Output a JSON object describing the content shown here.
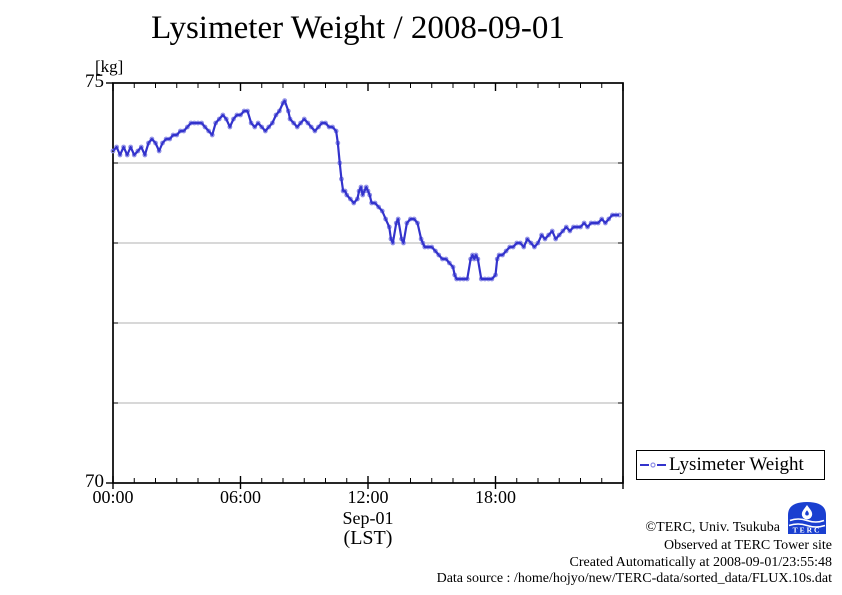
{
  "title": "Lysimeter Weight / 2008-09-01",
  "y_axis": {
    "unit_label": "[kg]",
    "top_tick": "75",
    "bottom_tick": "70"
  },
  "x_axis": {
    "tick_labels": [
      "00:00",
      "06:00",
      "12:00",
      "18:00"
    ],
    "tick_hours": [
      0,
      6,
      12,
      18
    ],
    "date_label": "Sep-01",
    "tz_label": "(LST)"
  },
  "legend": {
    "label": "Lysimeter Weight"
  },
  "footer": {
    "copyright": "©TERC, Univ. Tsukuba",
    "observed": "Observed at TERC Tower site",
    "created": "Created Automatically at 2008-09-01/23:55:48",
    "source": "Data source : /home/hojyo/new/TERC-data/sorted_data/FLUX.10s.dat",
    "logo_text": "TERC"
  },
  "colors": {
    "line": "#3333cc",
    "marker": "#8e8ee6",
    "grid": "#b0b0b0",
    "axis": "#000000",
    "logo_blue": "#1a3fd0"
  },
  "chart_data": {
    "type": "line",
    "series_name": "Lysimeter Weight",
    "title": "Lysimeter Weight / 2008-09-01",
    "xlabel": "Sep-01 (LST)",
    "ylabel": "[kg]",
    "xlim": [
      0,
      24
    ],
    "ylim": [
      70,
      75
    ],
    "y_labeled_ticks": [
      75,
      70
    ],
    "y_gridlines": [
      74,
      73,
      72,
      71
    ],
    "x_major_tick_hours": [
      0,
      6,
      12,
      18,
      24
    ],
    "x_minor_tick_interval_hours": 1,
    "grid": "horizontal-only",
    "legend_position": "bottom-right-outside",
    "points": [
      [
        0.0,
        74.15
      ],
      [
        0.17,
        74.2
      ],
      [
        0.33,
        74.1
      ],
      [
        0.5,
        74.2
      ],
      [
        0.67,
        74.1
      ],
      [
        0.83,
        74.2
      ],
      [
        1.0,
        74.1
      ],
      [
        1.17,
        74.15
      ],
      [
        1.33,
        74.2
      ],
      [
        1.5,
        74.1
      ],
      [
        1.67,
        74.25
      ],
      [
        1.83,
        74.3
      ],
      [
        2.0,
        74.25
      ],
      [
        2.17,
        74.15
      ],
      [
        2.33,
        74.25
      ],
      [
        2.5,
        74.3
      ],
      [
        2.67,
        74.3
      ],
      [
        2.83,
        74.35
      ],
      [
        3.0,
        74.35
      ],
      [
        3.17,
        74.4
      ],
      [
        3.33,
        74.4
      ],
      [
        3.5,
        74.45
      ],
      [
        3.67,
        74.5
      ],
      [
        3.83,
        74.5
      ],
      [
        4.0,
        74.5
      ],
      [
        4.17,
        74.5
      ],
      [
        4.33,
        74.45
      ],
      [
        4.5,
        74.4
      ],
      [
        4.67,
        74.35
      ],
      [
        4.83,
        74.5
      ],
      [
        5.0,
        74.55
      ],
      [
        5.17,
        74.6
      ],
      [
        5.33,
        74.55
      ],
      [
        5.5,
        74.45
      ],
      [
        5.67,
        74.55
      ],
      [
        5.83,
        74.6
      ],
      [
        6.0,
        74.6
      ],
      [
        6.17,
        74.65
      ],
      [
        6.33,
        74.65
      ],
      [
        6.5,
        74.5
      ],
      [
        6.67,
        74.45
      ],
      [
        6.83,
        74.5
      ],
      [
        7.0,
        74.45
      ],
      [
        7.17,
        74.4
      ],
      [
        7.33,
        74.45
      ],
      [
        7.5,
        74.5
      ],
      [
        7.67,
        74.6
      ],
      [
        7.83,
        74.65
      ],
      [
        8.0,
        74.75
      ],
      [
        8.08,
        74.78
      ],
      [
        8.25,
        74.65
      ],
      [
        8.33,
        74.55
      ],
      [
        8.5,
        74.5
      ],
      [
        8.67,
        74.45
      ],
      [
        8.83,
        74.5
      ],
      [
        9.0,
        74.55
      ],
      [
        9.17,
        74.5
      ],
      [
        9.33,
        74.45
      ],
      [
        9.5,
        74.4
      ],
      [
        9.67,
        74.45
      ],
      [
        9.83,
        74.5
      ],
      [
        10.0,
        74.5
      ],
      [
        10.17,
        74.45
      ],
      [
        10.33,
        74.45
      ],
      [
        10.5,
        74.4
      ],
      [
        10.58,
        74.25
      ],
      [
        10.67,
        74.0
      ],
      [
        10.75,
        73.8
      ],
      [
        10.83,
        73.65
      ],
      [
        10.92,
        73.65
      ],
      [
        11.0,
        73.6
      ],
      [
        11.17,
        73.55
      ],
      [
        11.33,
        73.5
      ],
      [
        11.5,
        73.55
      ],
      [
        11.58,
        73.65
      ],
      [
        11.67,
        73.7
      ],
      [
        11.75,
        73.6
      ],
      [
        11.83,
        73.65
      ],
      [
        11.92,
        73.7
      ],
      [
        12.0,
        73.65
      ],
      [
        12.08,
        73.6
      ],
      [
        12.17,
        73.5
      ],
      [
        12.33,
        73.5
      ],
      [
        12.5,
        73.45
      ],
      [
        12.67,
        73.4
      ],
      [
        12.83,
        73.3
      ],
      [
        13.0,
        73.2
      ],
      [
        13.08,
        73.05
      ],
      [
        13.17,
        73.0
      ],
      [
        13.33,
        73.25
      ],
      [
        13.42,
        73.3
      ],
      [
        13.58,
        73.05
      ],
      [
        13.67,
        73.0
      ],
      [
        13.83,
        73.25
      ],
      [
        14.0,
        73.3
      ],
      [
        14.17,
        73.3
      ],
      [
        14.33,
        73.25
      ],
      [
        14.5,
        73.05
      ],
      [
        14.58,
        73.0
      ],
      [
        14.67,
        72.95
      ],
      [
        14.83,
        72.95
      ],
      [
        15.0,
        72.95
      ],
      [
        15.17,
        72.9
      ],
      [
        15.33,
        72.85
      ],
      [
        15.5,
        72.8
      ],
      [
        15.67,
        72.8
      ],
      [
        15.83,
        72.75
      ],
      [
        16.0,
        72.7
      ],
      [
        16.08,
        72.6
      ],
      [
        16.17,
        72.55
      ],
      [
        16.33,
        72.55
      ],
      [
        16.5,
        72.55
      ],
      [
        16.67,
        72.55
      ],
      [
        16.83,
        72.8
      ],
      [
        16.92,
        72.85
      ],
      [
        17.0,
        72.8
      ],
      [
        17.08,
        72.85
      ],
      [
        17.17,
        72.8
      ],
      [
        17.33,
        72.55
      ],
      [
        17.5,
        72.55
      ],
      [
        17.67,
        72.55
      ],
      [
        17.83,
        72.55
      ],
      [
        18.0,
        72.6
      ],
      [
        18.08,
        72.8
      ],
      [
        18.17,
        72.85
      ],
      [
        18.33,
        72.85
      ],
      [
        18.5,
        72.9
      ],
      [
        18.67,
        72.95
      ],
      [
        18.83,
        72.95
      ],
      [
        19.0,
        73.0
      ],
      [
        19.17,
        73.0
      ],
      [
        19.33,
        72.95
      ],
      [
        19.5,
        73.05
      ],
      [
        19.67,
        73.0
      ],
      [
        19.83,
        72.95
      ],
      [
        20.0,
        73.0
      ],
      [
        20.17,
        73.1
      ],
      [
        20.33,
        73.05
      ],
      [
        20.5,
        73.1
      ],
      [
        20.67,
        73.15
      ],
      [
        20.83,
        73.05
      ],
      [
        21.0,
        73.1
      ],
      [
        21.17,
        73.15
      ],
      [
        21.33,
        73.2
      ],
      [
        21.5,
        73.15
      ],
      [
        21.67,
        73.2
      ],
      [
        21.83,
        73.2
      ],
      [
        22.0,
        73.2
      ],
      [
        22.17,
        73.25
      ],
      [
        22.33,
        73.2
      ],
      [
        22.5,
        73.25
      ],
      [
        22.67,
        73.25
      ],
      [
        22.83,
        73.25
      ],
      [
        23.0,
        73.3
      ],
      [
        23.17,
        73.25
      ],
      [
        23.33,
        73.3
      ],
      [
        23.5,
        73.35
      ],
      [
        23.67,
        73.35
      ],
      [
        23.83,
        73.35
      ]
    ]
  }
}
